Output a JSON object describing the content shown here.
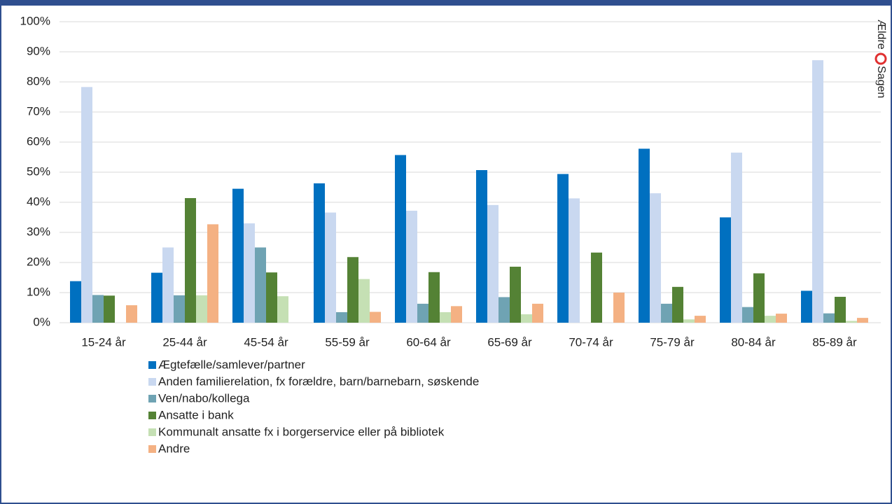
{
  "chart_data": {
    "type": "bar",
    "categories": [
      "15-24 år",
      "25-44 år",
      "45-54 år",
      "55-59 år",
      "60-64 år",
      "65-69 år",
      "70-74 år",
      "75-79 år",
      "80-84 år",
      "85-89 år"
    ],
    "series": [
      {
        "name": "Ægtefælle/samlever/partner",
        "color": "#0070c0",
        "values": [
          13.8,
          16.6,
          44.5,
          46.3,
          55.7,
          50.7,
          49.4,
          57.8,
          35.0,
          10.6
        ]
      },
      {
        "name": "Anden familierelation, fx forældre, barn/barnebarn, søskende",
        "color": "#c9d8f0",
        "values": [
          78.3,
          25.0,
          33.0,
          36.6,
          37.2,
          39.1,
          41.3,
          43.0,
          56.5,
          87.2
        ]
      },
      {
        "name": "Ven/nabo/kollega",
        "color": "#6fa3b3",
        "values": [
          9.2,
          9.1,
          25.0,
          3.5,
          6.3,
          8.5,
          0,
          6.3,
          5.2,
          3.1
        ]
      },
      {
        "name": "Ansatte i bank",
        "color": "#548235",
        "values": [
          9.0,
          41.4,
          16.7,
          21.8,
          16.8,
          18.6,
          23.3,
          11.9,
          16.4,
          8.6
        ]
      },
      {
        "name": "Kommunalt ansatte fx i borgerservice eller på bibliotek",
        "color": "#c5e0b4",
        "values": [
          0,
          9.1,
          8.8,
          14.5,
          3.5,
          2.8,
          0,
          1.1,
          2.3,
          0.6
        ]
      },
      {
        "name": "Andre",
        "color": "#f4b183",
        "values": [
          5.8,
          32.7,
          0,
          3.6,
          5.5,
          6.3,
          10.0,
          2.3,
          3.0,
          1.6
        ]
      }
    ],
    "ylim": [
      0,
      100
    ],
    "yticks": [
      {
        "value": 0,
        "label": "0%"
      },
      {
        "value": 10,
        "label": "10%"
      },
      {
        "value": 20,
        "label": "20%"
      },
      {
        "value": 30,
        "label": "30%"
      },
      {
        "value": 40,
        "label": "40%"
      },
      {
        "value": 50,
        "label": "50%"
      },
      {
        "value": 60,
        "label": "60%"
      },
      {
        "value": 70,
        "label": "70%"
      },
      {
        "value": 80,
        "label": "80%"
      },
      {
        "value": 90,
        "label": "90%"
      },
      {
        "value": 100,
        "label": "100%"
      }
    ],
    "grid": true,
    "logo": [
      "Ældre",
      "Sagen"
    ]
  }
}
